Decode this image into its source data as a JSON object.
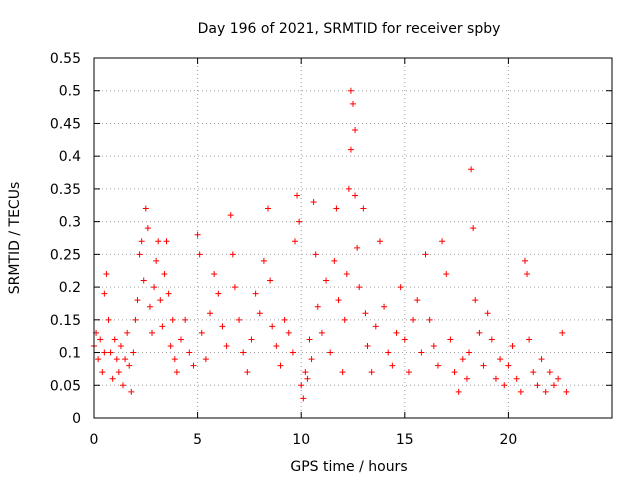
{
  "chart_data": {
    "type": "scatter",
    "title": "Day 196 of 2021, SRMTID for receiver spby",
    "xlabel": "GPS time / hours",
    "ylabel": "SRMTID / TECUs",
    "xlim": [
      0,
      25
    ],
    "ylim": [
      0,
      0.55
    ],
    "x_ticks": [
      0,
      5,
      10,
      15,
      20
    ],
    "x_tick_labels": [
      "0",
      "5",
      "10",
      "15",
      "20"
    ],
    "y_ticks": [
      0,
      0.05,
      0.1,
      0.15,
      0.2,
      0.25,
      0.3,
      0.35,
      0.4,
      0.45,
      0.5,
      0.55
    ],
    "y_tick_labels": [
      "0",
      "0.05",
      "0.1",
      "0.15",
      "0.2",
      "0.25",
      "0.3",
      "0.35",
      "0.4",
      "0.45",
      "0.5",
      "0.55"
    ],
    "grid": true,
    "marker": "+",
    "series_color": "#ff0000",
    "series": [
      {
        "name": "SRMTID",
        "points": [
          [
            0.0,
            0.11
          ],
          [
            0.1,
            0.13
          ],
          [
            0.2,
            0.09
          ],
          [
            0.3,
            0.12
          ],
          [
            0.4,
            0.07
          ],
          [
            0.5,
            0.1
          ],
          [
            0.5,
            0.19
          ],
          [
            0.6,
            0.22
          ],
          [
            0.7,
            0.15
          ],
          [
            0.8,
            0.1
          ],
          [
            0.9,
            0.06
          ],
          [
            1.0,
            0.12
          ],
          [
            1.1,
            0.09
          ],
          [
            1.2,
            0.07
          ],
          [
            1.3,
            0.11
          ],
          [
            1.4,
            0.05
          ],
          [
            1.5,
            0.09
          ],
          [
            1.6,
            0.13
          ],
          [
            1.7,
            0.08
          ],
          [
            1.8,
            0.04
          ],
          [
            1.9,
            0.1
          ],
          [
            2.0,
            0.15
          ],
          [
            2.1,
            0.18
          ],
          [
            2.2,
            0.25
          ],
          [
            2.3,
            0.27
          ],
          [
            2.4,
            0.21
          ],
          [
            2.5,
            0.32
          ],
          [
            2.6,
            0.29
          ],
          [
            2.7,
            0.17
          ],
          [
            2.8,
            0.13
          ],
          [
            2.9,
            0.2
          ],
          [
            3.0,
            0.24
          ],
          [
            3.1,
            0.27
          ],
          [
            3.2,
            0.18
          ],
          [
            3.3,
            0.14
          ],
          [
            3.4,
            0.22
          ],
          [
            3.5,
            0.27
          ],
          [
            3.6,
            0.19
          ],
          [
            3.7,
            0.11
          ],
          [
            3.8,
            0.15
          ],
          [
            3.9,
            0.09
          ],
          [
            4.0,
            0.07
          ],
          [
            4.2,
            0.12
          ],
          [
            4.4,
            0.15
          ],
          [
            4.6,
            0.1
          ],
          [
            4.8,
            0.08
          ],
          [
            5.0,
            0.28
          ],
          [
            5.1,
            0.25
          ],
          [
            5.2,
            0.13
          ],
          [
            5.4,
            0.09
          ],
          [
            5.6,
            0.16
          ],
          [
            5.8,
            0.22
          ],
          [
            6.0,
            0.19
          ],
          [
            6.2,
            0.14
          ],
          [
            6.4,
            0.11
          ],
          [
            6.6,
            0.31
          ],
          [
            6.7,
            0.25
          ],
          [
            6.8,
            0.2
          ],
          [
            7.0,
            0.15
          ],
          [
            7.2,
            0.1
          ],
          [
            7.4,
            0.07
          ],
          [
            7.6,
            0.12
          ],
          [
            7.8,
            0.19
          ],
          [
            8.0,
            0.16
          ],
          [
            8.2,
            0.24
          ],
          [
            8.4,
            0.32
          ],
          [
            8.5,
            0.21
          ],
          [
            8.6,
            0.14
          ],
          [
            8.8,
            0.11
          ],
          [
            9.0,
            0.08
          ],
          [
            9.2,
            0.15
          ],
          [
            9.4,
            0.13
          ],
          [
            9.6,
            0.1
          ],
          [
            9.7,
            0.27
          ],
          [
            9.8,
            0.34
          ],
          [
            9.9,
            0.3
          ],
          [
            10.0,
            0.05
          ],
          [
            10.1,
            0.03
          ],
          [
            10.2,
            0.07
          ],
          [
            10.3,
            0.06
          ],
          [
            10.4,
            0.12
          ],
          [
            10.5,
            0.09
          ],
          [
            10.6,
            0.33
          ],
          [
            10.7,
            0.25
          ],
          [
            10.8,
            0.17
          ],
          [
            11.0,
            0.13
          ],
          [
            11.2,
            0.21
          ],
          [
            11.4,
            0.1
          ],
          [
            11.6,
            0.24
          ],
          [
            11.7,
            0.32
          ],
          [
            11.8,
            0.18
          ],
          [
            12.0,
            0.07
          ],
          [
            12.1,
            0.15
          ],
          [
            12.2,
            0.22
          ],
          [
            12.3,
            0.35
          ],
          [
            12.4,
            0.41
          ],
          [
            12.4,
            0.5
          ],
          [
            12.5,
            0.48
          ],
          [
            12.6,
            0.44
          ],
          [
            12.6,
            0.34
          ],
          [
            12.7,
            0.26
          ],
          [
            12.8,
            0.2
          ],
          [
            13.0,
            0.32
          ],
          [
            13.1,
            0.16
          ],
          [
            13.2,
            0.11
          ],
          [
            13.4,
            0.07
          ],
          [
            13.6,
            0.14
          ],
          [
            13.8,
            0.27
          ],
          [
            14.0,
            0.17
          ],
          [
            14.2,
            0.1
          ],
          [
            14.4,
            0.08
          ],
          [
            14.6,
            0.13
          ],
          [
            14.8,
            0.2
          ],
          [
            15.0,
            0.12
          ],
          [
            15.2,
            0.07
          ],
          [
            15.4,
            0.15
          ],
          [
            15.6,
            0.18
          ],
          [
            15.8,
            0.1
          ],
          [
            16.0,
            0.25
          ],
          [
            16.2,
            0.15
          ],
          [
            16.4,
            0.11
          ],
          [
            16.6,
            0.08
          ],
          [
            16.8,
            0.27
          ],
          [
            17.0,
            0.22
          ],
          [
            17.2,
            0.12
          ],
          [
            17.4,
            0.07
          ],
          [
            17.6,
            0.04
          ],
          [
            17.8,
            0.09
          ],
          [
            18.0,
            0.06
          ],
          [
            18.1,
            0.1
          ],
          [
            18.2,
            0.38
          ],
          [
            18.3,
            0.29
          ],
          [
            18.4,
            0.18
          ],
          [
            18.6,
            0.13
          ],
          [
            18.8,
            0.08
          ],
          [
            19.0,
            0.16
          ],
          [
            19.2,
            0.12
          ],
          [
            19.4,
            0.06
          ],
          [
            19.6,
            0.09
          ],
          [
            19.8,
            0.05
          ],
          [
            20.0,
            0.08
          ],
          [
            20.2,
            0.11
          ],
          [
            20.4,
            0.06
          ],
          [
            20.6,
            0.04
          ],
          [
            20.8,
            0.24
          ],
          [
            20.9,
            0.22
          ],
          [
            21.0,
            0.12
          ],
          [
            21.2,
            0.07
          ],
          [
            21.4,
            0.05
          ],
          [
            21.6,
            0.09
          ],
          [
            21.8,
            0.04
          ],
          [
            22.0,
            0.07
          ],
          [
            22.2,
            0.05
          ],
          [
            22.4,
            0.06
          ],
          [
            22.6,
            0.13
          ],
          [
            22.8,
            0.04
          ]
        ]
      }
    ]
  }
}
